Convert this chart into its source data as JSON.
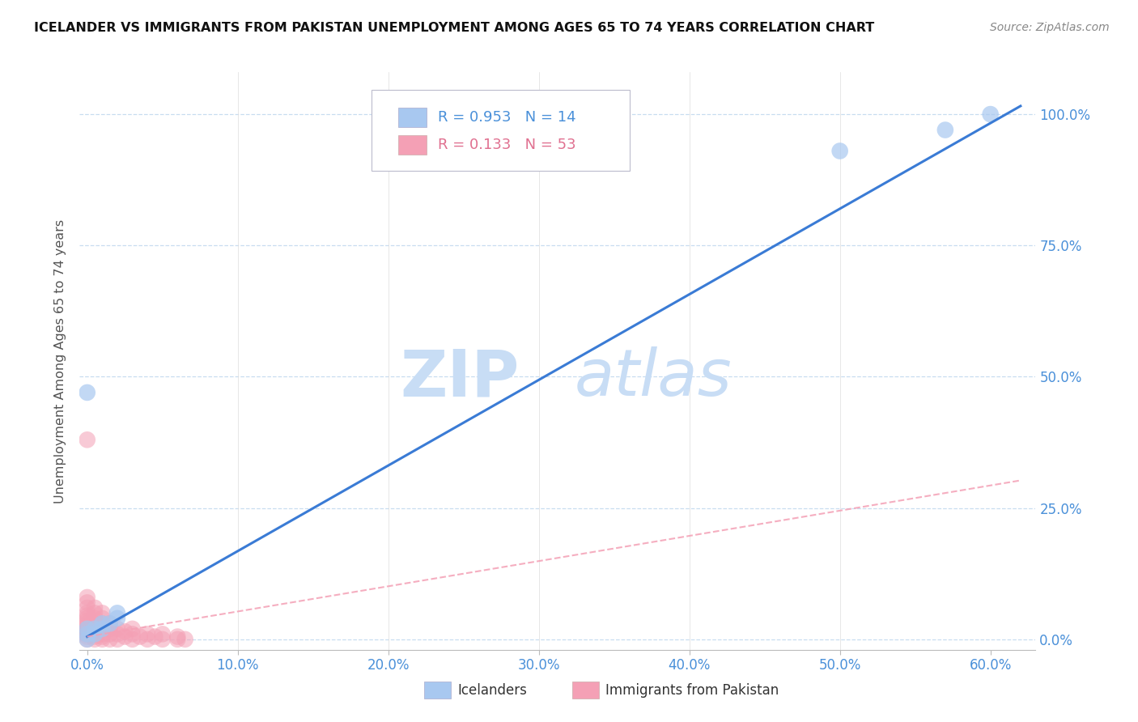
{
  "title": "ICELANDER VS IMMIGRANTS FROM PAKISTAN UNEMPLOYMENT AMONG AGES 65 TO 74 YEARS CORRELATION CHART",
  "source": "Source: ZipAtlas.com",
  "xlabel_ticks": [
    "0.0%",
    "10.0%",
    "20.0%",
    "30.0%",
    "40.0%",
    "50.0%",
    "60.0%"
  ],
  "ylabel_ticks": [
    "0.0%",
    "25.0%",
    "50.0%",
    "75.0%",
    "100.0%"
  ],
  "xlim": [
    -0.005,
    0.63
  ],
  "ylim": [
    -0.02,
    1.08
  ],
  "legend_r1": "R = 0.953   N = 14",
  "legend_r2": "R = 0.133   N = 53",
  "legend_label1": "Icelanders",
  "legend_label2": "Immigrants from Pakistan",
  "icelanders_color": "#a8c8f0",
  "pakistan_color": "#f4a0b5",
  "blue_line_color": "#3a7bd5",
  "pink_line_color": "#f4a0b5",
  "icelanders_points": [
    [
      0.0,
      0.0
    ],
    [
      0.0,
      0.01
    ],
    [
      0.0,
      0.02
    ],
    [
      0.005,
      0.01
    ],
    [
      0.005,
      0.02
    ],
    [
      0.01,
      0.02
    ],
    [
      0.01,
      0.03
    ],
    [
      0.015,
      0.03
    ],
    [
      0.02,
      0.04
    ],
    [
      0.02,
      0.05
    ],
    [
      0.0,
      0.47
    ],
    [
      0.5,
      0.93
    ],
    [
      0.57,
      0.97
    ],
    [
      0.6,
      1.0
    ]
  ],
  "pakistan_points": [
    [
      0.0,
      0.0
    ],
    [
      0.0,
      0.005
    ],
    [
      0.0,
      0.01
    ],
    [
      0.0,
      0.01
    ],
    [
      0.0,
      0.015
    ],
    [
      0.0,
      0.02
    ],
    [
      0.0,
      0.02
    ],
    [
      0.0,
      0.025
    ],
    [
      0.0,
      0.03
    ],
    [
      0.0,
      0.035
    ],
    [
      0.0,
      0.04
    ],
    [
      0.0,
      0.045
    ],
    [
      0.0,
      0.05
    ],
    [
      0.0,
      0.06
    ],
    [
      0.0,
      0.07
    ],
    [
      0.0,
      0.08
    ],
    [
      0.005,
      0.0
    ],
    [
      0.005,
      0.005
    ],
    [
      0.005,
      0.01
    ],
    [
      0.005,
      0.015
    ],
    [
      0.005,
      0.02
    ],
    [
      0.005,
      0.03
    ],
    [
      0.005,
      0.04
    ],
    [
      0.005,
      0.05
    ],
    [
      0.005,
      0.06
    ],
    [
      0.01,
      0.0
    ],
    [
      0.01,
      0.005
    ],
    [
      0.01,
      0.01
    ],
    [
      0.01,
      0.02
    ],
    [
      0.01,
      0.03
    ],
    [
      0.01,
      0.04
    ],
    [
      0.01,
      0.05
    ],
    [
      0.015,
      0.0
    ],
    [
      0.015,
      0.01
    ],
    [
      0.015,
      0.02
    ],
    [
      0.015,
      0.03
    ],
    [
      0.02,
      0.0
    ],
    [
      0.02,
      0.01
    ],
    [
      0.02,
      0.02
    ],
    [
      0.025,
      0.005
    ],
    [
      0.025,
      0.015
    ],
    [
      0.03,
      0.0
    ],
    [
      0.03,
      0.01
    ],
    [
      0.03,
      0.02
    ],
    [
      0.035,
      0.005
    ],
    [
      0.04,
      0.0
    ],
    [
      0.04,
      0.01
    ],
    [
      0.045,
      0.005
    ],
    [
      0.05,
      0.0
    ],
    [
      0.05,
      0.01
    ],
    [
      0.06,
      0.0
    ],
    [
      0.06,
      0.005
    ],
    [
      0.065,
      0.0
    ],
    [
      0.0,
      0.38
    ]
  ],
  "blue_line_x": [
    0.0,
    0.62
  ],
  "blue_line_slope": 1.63,
  "blue_line_intercept": 0.005,
  "pink_line_x": [
    0.0,
    0.62
  ],
  "pink_line_slope": 0.48,
  "pink_line_intercept": 0.005
}
